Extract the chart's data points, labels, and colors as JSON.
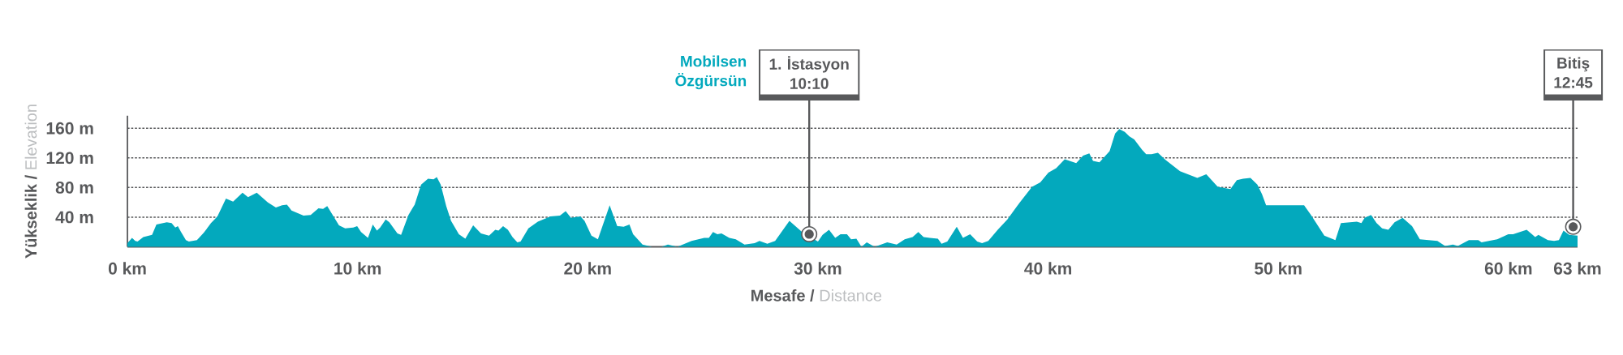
{
  "chart_data": {
    "type": "area",
    "xlabel": "**Mesafe /** Distance",
    "ylabel": "**Yükseklik /** Elevation",
    "color": "#03a9bd",
    "grid": "y",
    "x": [
      0,
      0.2,
      0.34,
      0.44,
      0.69,
      1.07,
      1.26,
      1.71,
      1.92,
      2.08,
      2.19,
      2.33,
      2.54,
      2.67,
      3.02,
      3.32,
      3.63,
      3.91,
      4.28,
      4.59,
      5.0,
      5.24,
      5.62,
      6.1,
      6.45,
      6.72,
      6.93,
      7.13,
      7.65,
      7.96,
      8.3,
      8.5,
      8.68,
      9.19,
      9.46,
      9.81,
      9.98,
      10.15,
      10.45,
      10.66,
      10.84,
      10.98,
      11.22,
      11.38,
      11.73,
      11.89,
      12.21,
      12.48,
      12.76,
      13.06,
      13.3,
      13.44,
      13.61,
      13.85,
      14.06,
      14.4,
      14.68,
      15.02,
      15.36,
      15.71,
      15.98,
      16.12,
      16.32,
      16.53,
      16.73,
      16.94,
      17.08,
      17.42,
      17.83,
      18.38,
      18.79,
      19.04,
      19.27,
      19.68,
      19.86,
      20.16,
      20.44,
      20.95,
      21.28,
      21.56,
      21.81,
      21.97,
      22.38,
      22.79,
      23.2,
      23.48,
      23.89,
      24.51,
      25.06,
      25.26,
      25.44,
      25.63,
      25.81,
      26.15,
      26.43,
      26.81,
      27.25,
      27.46,
      27.8,
      28.14,
      28.76,
      29.31,
      30.0,
      30.2,
      30.48,
      30.75,
      30.98,
      31.26,
      31.44,
      31.67,
      31.89,
      32.12,
      32.46,
      32.74,
      33.01,
      33.42,
      33.77,
      34.11,
      34.36,
      34.59,
      34.86,
      35.21,
      35.37,
      35.62,
      36.03,
      36.3,
      36.61,
      36.92,
      37.13,
      37.4,
      37.81,
      38.23,
      38.77,
      39.3,
      39.66,
      40.01,
      40.35,
      40.72,
      41.22,
      41.52,
      41.79,
      41.95,
      42.23,
      42.67,
      42.91,
      43.09,
      43.33,
      43.53,
      43.74,
      44.08,
      44.26,
      44.49,
      44.77,
      45.11,
      45.73,
      46.48,
      46.87,
      47.37,
      47.92,
      48.2,
      48.47,
      48.79,
      49.09,
      49.29,
      49.47,
      51.12,
      51.42,
      52.0,
      52.48,
      52.72,
      53.41,
      53.61,
      53.75,
      54.03,
      54.27,
      54.51,
      54.78,
      55.05,
      55.4,
      55.81,
      56.15,
      56.91,
      57.25,
      57.59,
      57.8,
      58.28,
      58.69,
      58.83,
      59.51,
      59.99,
      60.2,
      60.79,
      61.02,
      61.16,
      61.3,
      61.71,
      61.98,
      62.19,
      62.39,
      62.64,
      63
    ],
    "values": [
      5,
      12,
      8,
      7,
      13,
      16,
      30,
      33,
      32,
      26,
      28,
      20,
      9,
      7,
      9,
      19,
      32,
      41,
      65,
      61,
      73,
      67,
      73,
      60,
      53,
      56,
      57,
      49,
      42,
      43,
      52,
      51,
      55,
      29,
      25,
      26,
      28,
      20,
      12,
      30,
      22,
      26,
      37,
      33,
      18,
      16,
      43,
      57,
      84,
      92,
      91,
      94,
      84,
      55,
      35,
      17,
      11,
      29,
      18,
      15,
      23,
      22,
      28,
      23,
      13,
      6,
      7,
      25,
      34,
      41,
      42,
      48,
      39,
      41,
      35,
      15,
      10,
      56,
      28,
      27,
      30,
      17,
      3,
      0,
      0,
      3,
      0,
      8,
      12,
      12,
      20,
      17,
      18,
      12,
      10,
      3,
      5,
      8,
      4,
      8,
      35,
      20,
      7,
      16,
      23,
      12,
      17,
      17,
      10,
      11,
      0,
      6,
      0,
      3,
      6,
      3,
      10,
      13,
      20,
      13,
      12,
      11,
      4,
      7,
      27,
      12,
      17,
      7,
      5,
      8,
      23,
      37,
      60,
      81,
      87,
      100,
      106,
      118,
      113,
      123,
      126,
      116,
      114,
      129,
      153,
      159,
      155,
      149,
      145,
      131,
      125,
      125,
      127,
      117,
      102,
      93,
      98,
      81,
      78,
      90,
      92,
      93,
      84,
      71,
      56,
      56,
      43,
      15,
      9,
      32,
      34,
      32,
      39,
      43,
      32,
      25,
      23,
      33,
      39,
      28,
      10,
      8,
      1,
      3,
      1,
      9,
      9,
      6,
      10,
      17,
      17,
      23,
      17,
      13,
      16,
      9,
      8,
      9,
      22,
      16,
      15
    ],
    "xlim": [
      0,
      63
    ],
    "ylim": [
      0,
      177
    ],
    "xticks": [
      {
        "value": 0,
        "label": "0 km"
      },
      {
        "value": 10,
        "label": "10 km"
      },
      {
        "value": 20,
        "label": "20 km"
      },
      {
        "value": 30,
        "label": "30 km"
      },
      {
        "value": 40,
        "label": "40 km"
      },
      {
        "value": 50,
        "label": "50 km"
      },
      {
        "value": 60,
        "label": "60 km"
      },
      {
        "value": 63,
        "label": "63 km"
      }
    ],
    "yticks": [
      {
        "value": 40,
        "label": "40 m"
      },
      {
        "value": 80,
        "label": "80 m"
      },
      {
        "value": 120,
        "label": "120 m"
      },
      {
        "value": 160,
        "label": "160 m"
      }
    ],
    "annotations": [
      "Mobilsen Özgürsün",
      {
        "text": "1. İstasyon 10:10",
        "x": 29.62,
        "y": 17
      },
      {
        "text": "Bitiş 12:45",
        "x": 62.81,
        "y": 27
      }
    ]
  }
}
